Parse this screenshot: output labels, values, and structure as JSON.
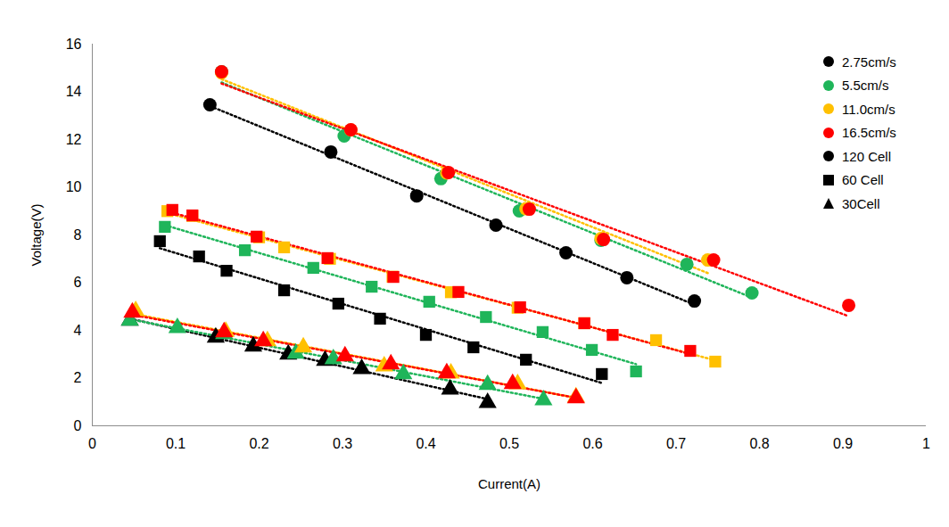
{
  "chart_data": {
    "type": "scatter",
    "x_label": "Current(A)",
    "y_label": "Voltage(V)",
    "xlim": [
      0,
      1
    ],
    "xticks": [
      0,
      0.1,
      0.2,
      0.3,
      0.4,
      0.5,
      0.6,
      0.7,
      0.8,
      0.9,
      1
    ],
    "ylim": [
      0,
      16
    ],
    "yticks": [
      0,
      2,
      4,
      6,
      8,
      10,
      12,
      14,
      16
    ],
    "grid": false,
    "legend": "right",
    "series": [
      {
        "name": "2.75cm/s",
        "cells": "120 Cell",
        "color": "#000000",
        "marker": "circle",
        "line_style": "dotted",
        "x": [
          0.141,
          0.286,
          0.389,
          0.484,
          0.568,
          0.641,
          0.722
        ],
        "values": [
          13.46,
          11.48,
          9.64,
          8.41,
          7.25,
          6.21,
          5.23
        ]
      },
      {
        "name": "5.5cm/s",
        "cells": "120 Cell",
        "color": "#1fb55a",
        "marker": "circle",
        "line_style": "dotted",
        "x": [
          0.155,
          0.302,
          0.418,
          0.512,
          0.61,
          0.713,
          0.791
        ],
        "values": [
          14.84,
          12.15,
          10.36,
          9.01,
          7.78,
          6.77,
          5.57
        ]
      },
      {
        "name": "11.0cm/s",
        "cells": "120 Cell",
        "color": "#ffc000",
        "marker": "circle",
        "line_style": "dotted",
        "x": [
          0.155,
          0.31,
          0.425,
          0.52,
          0.61,
          0.738
        ],
        "values": [
          14.8,
          12.4,
          10.6,
          9.1,
          7.85,
          6.95
        ]
      },
      {
        "name": "16.5cm/s",
        "cells": "120 Cell",
        "color": "#ff0000",
        "marker": "circle",
        "line_style": "dotted",
        "x": [
          0.155,
          0.31,
          0.427,
          0.524,
          0.613,
          0.745,
          0.907
        ],
        "values": [
          14.84,
          12.41,
          10.62,
          9.08,
          7.81,
          6.95,
          5.05
        ]
      },
      {
        "name": "2.75cm/s",
        "cells": "60 Cell",
        "color": "#000000",
        "marker": "square",
        "line_style": "dotted",
        "x": [
          0.081,
          0.128,
          0.161,
          0.23,
          0.295,
          0.345,
          0.4,
          0.457,
          0.52,
          0.611
        ],
        "values": [
          7.74,
          7.1,
          6.5,
          5.68,
          5.12,
          4.49,
          3.81,
          3.29,
          2.77,
          2.17
        ]
      },
      {
        "name": "5.5cm/s",
        "cells": "60 Cell",
        "color": "#1fb55a",
        "marker": "square",
        "line_style": "dotted",
        "x": [
          0.087,
          0.183,
          0.265,
          0.335,
          0.404,
          0.472,
          0.54,
          0.599,
          0.652
        ],
        "values": [
          8.34,
          7.36,
          6.62,
          5.83,
          5.2,
          4.56,
          3.93,
          3.18,
          2.28
        ]
      },
      {
        "name": "11.0cm/s",
        "cells": "60 Cell",
        "color": "#ffc000",
        "marker": "square",
        "line_style": "dotted",
        "x": [
          0.09,
          0.12,
          0.2,
          0.23,
          0.285,
          0.36,
          0.43,
          0.51,
          0.59,
          0.676,
          0.747
        ],
        "values": [
          9.0,
          8.8,
          7.9,
          7.48,
          7.0,
          6.25,
          5.6,
          4.95,
          4.3,
          3.59,
          2.69
        ]
      },
      {
        "name": "16.5cm/s",
        "cells": "60 Cell",
        "color": "#ff0000",
        "marker": "square",
        "line_style": "dotted",
        "x": [
          0.096,
          0.12,
          0.197,
          0.282,
          0.361,
          0.439,
          0.513,
          0.59,
          0.624,
          0.717
        ],
        "values": [
          9.05,
          8.82,
          7.93,
          7.03,
          6.24,
          5.61,
          4.97,
          4.3,
          3.81,
          3.14
        ]
      },
      {
        "name": "2.75cm/s",
        "cells": "30Cell",
        "color": "#000000",
        "marker": "triangle",
        "line_style": "dotted",
        "x": [
          0.045,
          0.148,
          0.193,
          0.235,
          0.279,
          0.323,
          0.429,
          0.474
        ],
        "values": [
          4.41,
          3.7,
          3.33,
          2.99,
          2.73,
          2.39,
          1.53,
          0.97
        ]
      },
      {
        "name": "5.5cm/s",
        "cells": "30Cell",
        "color": "#1fb55a",
        "marker": "triangle",
        "line_style": "dotted",
        "x": [
          0.045,
          0.102,
          0.158,
          0.244,
          0.289,
          0.373,
          0.474,
          0.541
        ],
        "values": [
          4.41,
          4.11,
          3.85,
          3.03,
          2.8,
          2.17,
          1.72,
          1.08
        ]
      },
      {
        "name": "11.0cm/s",
        "cells": "30Cell",
        "color": "#ffc000",
        "marker": "triangle",
        "line_style": "dotted",
        "x": [
          0.052,
          0.16,
          0.21,
          0.253,
          0.35,
          0.43,
          0.51,
          0.58
        ],
        "values": [
          4.82,
          3.95,
          3.55,
          3.29,
          2.5,
          2.2,
          1.75,
          1.2
        ]
      },
      {
        "name": "16.5cm/s",
        "cells": "30Cell",
        "color": "#ff0000",
        "marker": "triangle",
        "line_style": "dotted",
        "x": [
          0.048,
          0.158,
          0.205,
          0.303,
          0.358,
          0.425,
          0.504,
          0.58
        ],
        "values": [
          4.75,
          3.93,
          3.55,
          2.92,
          2.58,
          2.21,
          1.76,
          1.16
        ]
      }
    ]
  }
}
